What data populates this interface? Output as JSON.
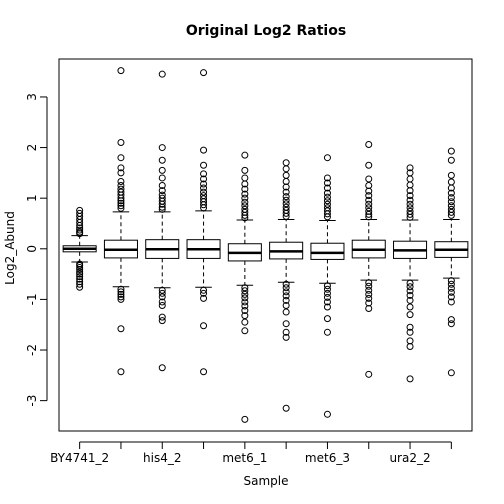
{
  "chart_data": {
    "type": "boxplot",
    "title": "Original Log2 Ratios",
    "xlabel": "Sample",
    "ylabel": "Log2_Abund",
    "ylim": [
      -3.6,
      3.75
    ],
    "yticks": [
      -3,
      -2,
      -1,
      0,
      1,
      2,
      3
    ],
    "grid": false,
    "legend": "none",
    "category_tick_labels": [
      "BY4741_2",
      "his4_2",
      "met6_1",
      "met6_3",
      "ura2_2"
    ],
    "categories": [
      "BY4741_2",
      "",
      "his4_2",
      "",
      "met6_1",
      "",
      "met6_3",
      "",
      "ura2_2",
      ""
    ],
    "boxes": [
      {
        "name": "BY4741_2",
        "q1": -0.06,
        "median": 0.0,
        "q3": 0.06,
        "whisker_low": -0.26,
        "whisker_high": 0.26,
        "outliers": [
          0.76,
          0.7,
          0.64,
          0.58,
          0.52,
          0.46,
          0.41,
          0.37,
          0.33,
          0.3,
          -0.3,
          -0.33,
          -0.37,
          -0.41,
          -0.46,
          -0.5,
          -0.55,
          -0.6,
          -0.65,
          -0.7,
          -0.76
        ]
      },
      {
        "name": "",
        "q1": -0.18,
        "median": -0.02,
        "q3": 0.17,
        "whisker_low": -0.75,
        "whisker_high": 0.73,
        "outliers": [
          3.52,
          2.1,
          1.8,
          1.6,
          1.5,
          1.33,
          1.25,
          1.18,
          1.12,
          1.06,
          1.0,
          0.95,
          0.9,
          0.85,
          0.8,
          -0.8,
          -0.85,
          -0.9,
          -0.95,
          -1.0,
          -1.58,
          -2.43
        ]
      },
      {
        "name": "his4_2",
        "q1": -0.19,
        "median": -0.01,
        "q3": 0.18,
        "whisker_low": -0.77,
        "whisker_high": 0.73,
        "outliers": [
          3.45,
          2.0,
          1.75,
          1.55,
          1.4,
          1.25,
          1.15,
          1.06,
          1.0,
          0.94,
          0.88,
          0.82,
          0.78,
          -0.82,
          -0.88,
          -0.95,
          -1.05,
          -1.12,
          -1.35,
          -1.42,
          -2.35
        ]
      },
      {
        "name": "",
        "q1": -0.19,
        "median": -0.01,
        "q3": 0.18,
        "whisker_low": -0.76,
        "whisker_high": 0.75,
        "outliers": [
          3.48,
          1.95,
          1.65,
          1.48,
          1.38,
          1.28,
          1.2,
          1.12,
          1.05,
          0.99,
          0.93,
          0.87,
          0.81,
          -0.82,
          -0.88,
          -0.98,
          -1.52,
          -2.43
        ]
      },
      {
        "name": "met6_1",
        "q1": -0.24,
        "median": -0.08,
        "q3": 0.1,
        "whisker_low": -0.72,
        "whisker_high": 0.57,
        "outliers": [
          1.85,
          1.55,
          1.4,
          1.28,
          1.18,
          1.08,
          1.0,
          0.92,
          0.85,
          0.78,
          0.72,
          0.66,
          0.61,
          -0.77,
          -0.83,
          -0.9,
          -0.97,
          -1.05,
          -1.13,
          -1.22,
          -1.32,
          -1.45,
          -1.62,
          -3.37
        ]
      },
      {
        "name": "",
        "q1": -0.2,
        "median": -0.05,
        "q3": 0.13,
        "whisker_low": -0.66,
        "whisker_high": 0.58,
        "outliers": [
          1.7,
          1.58,
          1.45,
          1.33,
          1.22,
          1.12,
          1.03,
          0.96,
          0.89,
          0.82,
          0.76,
          0.7,
          0.64,
          -0.7,
          -0.77,
          -0.85,
          -0.93,
          -1.02,
          -1.12,
          -1.25,
          -1.48,
          -1.65,
          -1.75,
          -3.15
        ]
      },
      {
        "name": "met6_3",
        "q1": -0.21,
        "median": -0.08,
        "q3": 0.11,
        "whisker_low": -0.68,
        "whisker_high": 0.56,
        "outliers": [
          1.8,
          1.4,
          1.3,
          1.2,
          1.1,
          1.02,
          0.95,
          0.88,
          0.81,
          0.75,
          0.69,
          0.63,
          -0.73,
          -0.8,
          -0.88,
          -0.96,
          -1.05,
          -1.15,
          -1.38,
          -1.65,
          -3.27
        ]
      },
      {
        "name": "",
        "q1": -0.18,
        "median": -0.02,
        "q3": 0.17,
        "whisker_low": -0.62,
        "whisker_high": 0.58,
        "outliers": [
          2.06,
          1.65,
          1.38,
          1.25,
          1.14,
          1.05,
          0.96,
          0.88,
          0.81,
          0.74,
          0.68,
          0.63,
          -0.67,
          -0.74,
          -0.82,
          -0.9,
          -0.98,
          -1.07,
          -1.18,
          -2.48
        ]
      },
      {
        "name": "ura2_2",
        "q1": -0.19,
        "median": -0.03,
        "q3": 0.15,
        "whisker_low": -0.62,
        "whisker_high": 0.57,
        "outliers": [
          1.6,
          1.5,
          1.38,
          1.26,
          1.15,
          1.05,
          0.96,
          0.88,
          0.81,
          0.74,
          0.68,
          0.62,
          -0.68,
          -0.75,
          -0.83,
          -0.92,
          -1.02,
          -1.15,
          -1.3,
          -1.55,
          -1.65,
          -1.82,
          -1.93,
          -2.57
        ]
      },
      {
        "name": "",
        "q1": -0.17,
        "median": -0.02,
        "q3": 0.14,
        "whisker_low": -0.58,
        "whisker_high": 0.58,
        "outliers": [
          1.93,
          1.75,
          1.45,
          1.32,
          1.2,
          1.1,
          1.01,
          0.93,
          0.85,
          0.78,
          0.72,
          0.66,
          -0.63,
          -0.7,
          -0.78,
          -0.86,
          -0.95,
          -1.05,
          -1.4,
          -1.48,
          -2.45
        ]
      }
    ]
  }
}
